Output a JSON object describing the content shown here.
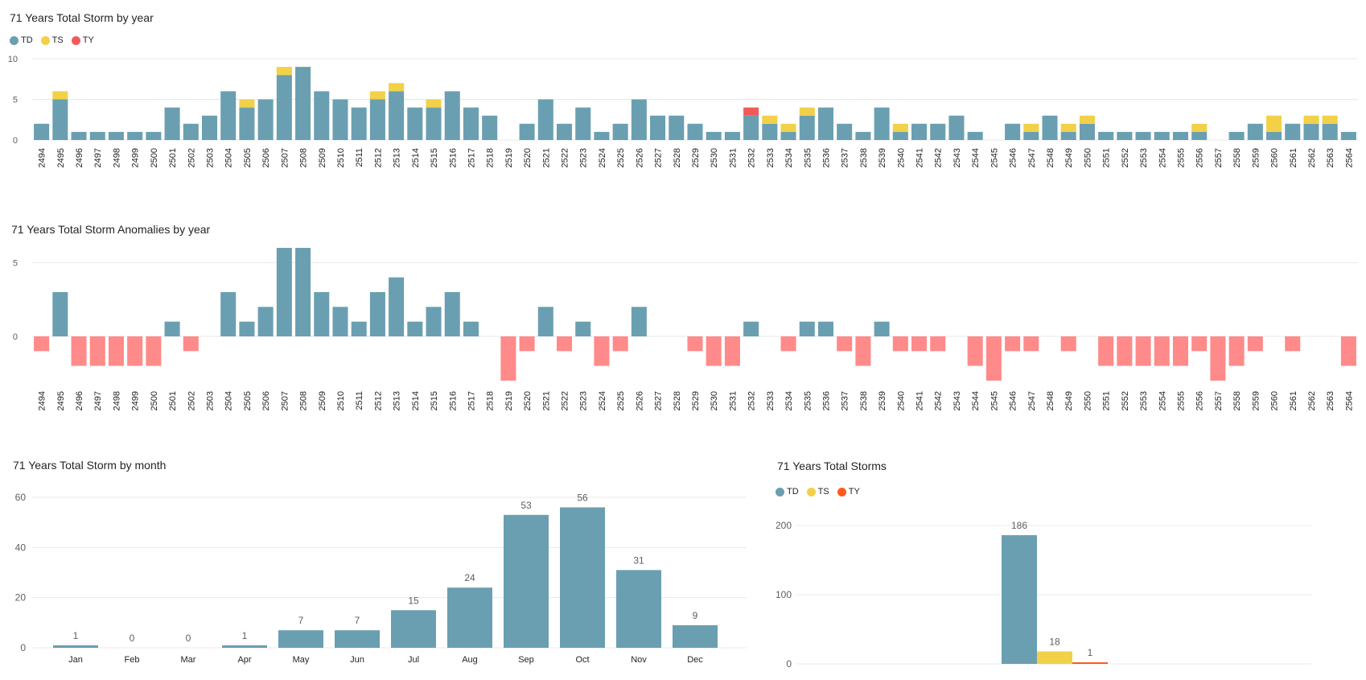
{
  "colors": {
    "TD": "#6a9fb1",
    "TS": "#f2d048",
    "TY": "#f15a5a",
    "TY2": "#fc5b1d",
    "neg": "#ff8a8a",
    "grid": "#e8e8e8"
  },
  "chart_data": [
    {
      "id": "by-year",
      "type": "bar",
      "stacked": true,
      "title": "71 Years Total Storm by year",
      "legend": [
        {
          "name": "TD",
          "color": "#6a9fb1"
        },
        {
          "name": "TS",
          "color": "#f2d048"
        },
        {
          "name": "TY",
          "color": "#f15a5a"
        }
      ],
      "ylim": [
        0,
        10
      ],
      "yticks": [
        0,
        5,
        10
      ],
      "categories": [
        "2494",
        "2495",
        "2496",
        "2497",
        "2498",
        "2499",
        "2500",
        "2501",
        "2502",
        "2503",
        "2504",
        "2505",
        "2506",
        "2507",
        "2508",
        "2509",
        "2510",
        "2511",
        "2512",
        "2513",
        "2514",
        "2515",
        "2516",
        "2517",
        "2518",
        "2519",
        "2520",
        "2521",
        "2522",
        "2523",
        "2524",
        "2525",
        "2526",
        "2527",
        "2528",
        "2529",
        "2530",
        "2531",
        "2532",
        "2533",
        "2534",
        "2535",
        "2536",
        "2537",
        "2538",
        "2539",
        "2540",
        "2541",
        "2542",
        "2543",
        "2544",
        "2545",
        "2546",
        "2547",
        "2548",
        "2549",
        "2550",
        "2551",
        "2552",
        "2553",
        "2554",
        "2555",
        "2556",
        "2557",
        "2558",
        "2559",
        "2560",
        "2561",
        "2562",
        "2563",
        "2564"
      ],
      "series": [
        {
          "name": "TD",
          "values": [
            2,
            5,
            1,
            1,
            1,
            1,
            1,
            4,
            2,
            3,
            6,
            4,
            5,
            8,
            9,
            6,
            5,
            4,
            5,
            6,
            4,
            4,
            6,
            4,
            3,
            0,
            2,
            5,
            2,
            4,
            1,
            2,
            5,
            3,
            3,
            2,
            1,
            1,
            3,
            2,
            1,
            3,
            4,
            2,
            1,
            4,
            1,
            2,
            2,
            3,
            1,
            0,
            2,
            1,
            3,
            1,
            2,
            1,
            1,
            1,
            1,
            1,
            1,
            0,
            1,
            2,
            1,
            2,
            2,
            2,
            1
          ]
        },
        {
          "name": "TS",
          "values": [
            0,
            1,
            0,
            0,
            0,
            0,
            0,
            0,
            0,
            0,
            0,
            1,
            0,
            1,
            0,
            0,
            0,
            0,
            1,
            1,
            0,
            1,
            0,
            0,
            0,
            0,
            0,
            0,
            0,
            0,
            0,
            0,
            0,
            0,
            0,
            0,
            0,
            0,
            0,
            1,
            1,
            1,
            0,
            0,
            0,
            0,
            1,
            0,
            0,
            0,
            0,
            0,
            0,
            1,
            0,
            1,
            1,
            0,
            0,
            0,
            0,
            0,
            1,
            0,
            0,
            0,
            2,
            0,
            1,
            1,
            0
          ]
        },
        {
          "name": "TY",
          "values": [
            0,
            0,
            0,
            0,
            0,
            0,
            0,
            0,
            0,
            0,
            0,
            0,
            0,
            0,
            0,
            0,
            0,
            0,
            0,
            0,
            0,
            0,
            0,
            0,
            0,
            0,
            0,
            0,
            0,
            0,
            0,
            0,
            0,
            0,
            0,
            0,
            0,
            0,
            1,
            0,
            0,
            0,
            0,
            0,
            0,
            0,
            0,
            0,
            0,
            0,
            0,
            0,
            0,
            0,
            0,
            0,
            0,
            0,
            0,
            0,
            0,
            0,
            0,
            0,
            0,
            0,
            0,
            0,
            0,
            0,
            0
          ]
        }
      ]
    },
    {
      "id": "anomalies",
      "type": "bar",
      "title": "71 Years Total Storm Anomalies by year",
      "ylim": [
        -3,
        6
      ],
      "yticks": [
        0,
        5
      ],
      "categories": [
        "2494",
        "2495",
        "2496",
        "2497",
        "2498",
        "2499",
        "2500",
        "2501",
        "2502",
        "2503",
        "2504",
        "2505",
        "2506",
        "2507",
        "2508",
        "2509",
        "2510",
        "2511",
        "2512",
        "2513",
        "2514",
        "2515",
        "2516",
        "2517",
        "2518",
        "2519",
        "2520",
        "2521",
        "2522",
        "2523",
        "2524",
        "2525",
        "2526",
        "2527",
        "2528",
        "2529",
        "2530",
        "2531",
        "2532",
        "2533",
        "2534",
        "2535",
        "2536",
        "2537",
        "2538",
        "2539",
        "2540",
        "2541",
        "2542",
        "2543",
        "2544",
        "2545",
        "2546",
        "2547",
        "2548",
        "2549",
        "2550",
        "2551",
        "2552",
        "2553",
        "2554",
        "2555",
        "2556",
        "2557",
        "2558",
        "2559",
        "2560",
        "2561",
        "2562",
        "2563",
        "2564"
      ],
      "values": [
        -1,
        3,
        -2,
        -2,
        -2,
        -2,
        -2,
        1,
        -1,
        0,
        3,
        1,
        2,
        6,
        6,
        3,
        2,
        1,
        3,
        4,
        1,
        2,
        3,
        1,
        0,
        -3,
        -1,
        2,
        -1,
        1,
        -2,
        -1,
        2,
        0,
        0,
        -1,
        -2,
        -2,
        1,
        0,
        -1,
        1,
        1,
        -1,
        -2,
        1,
        -1,
        -1,
        -1,
        0,
        -2,
        -3,
        -1,
        -1,
        0,
        -1,
        0,
        -2,
        -2,
        -2,
        -2,
        -2,
        -1,
        -3,
        -2,
        -1,
        0,
        -1,
        0,
        0,
        -2
      ]
    },
    {
      "id": "by-month",
      "type": "bar",
      "title": "71 Years Total Storm by month",
      "ylim": [
        0,
        60
      ],
      "yticks": [
        0,
        20,
        40,
        60
      ],
      "categories": [
        "Jan",
        "Feb",
        "Mar",
        "Apr",
        "May",
        "Jun",
        "Jul",
        "Aug",
        "Sep",
        "Oct",
        "Nov",
        "Dec"
      ],
      "values": [
        1,
        0,
        0,
        1,
        7,
        7,
        15,
        24,
        53,
        56,
        31,
        9
      ]
    },
    {
      "id": "total",
      "type": "bar",
      "title": "71 Years Total Storms",
      "legend": [
        {
          "name": "TD",
          "color": "#6a9fb1"
        },
        {
          "name": "TS",
          "color": "#f2d048"
        },
        {
          "name": "TY",
          "color": "#fc5b1d"
        }
      ],
      "ylim": [
        0,
        200
      ],
      "yticks": [
        0,
        100,
        200
      ],
      "series": [
        {
          "name": "TD",
          "value": 186,
          "color": "#6a9fb1"
        },
        {
          "name": "TS",
          "value": 18,
          "color": "#f2d048"
        },
        {
          "name": "TY",
          "value": 1,
          "color": "#fc5b1d"
        }
      ]
    }
  ]
}
